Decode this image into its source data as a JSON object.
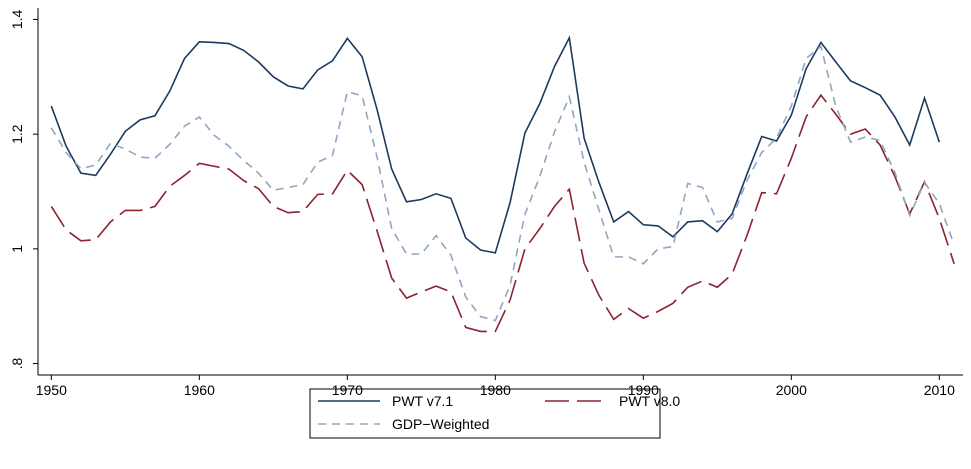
{
  "chart_data": {
    "type": "line",
    "x": [
      1950,
      1951,
      1952,
      1953,
      1954,
      1955,
      1956,
      1957,
      1958,
      1959,
      1960,
      1961,
      1962,
      1963,
      1964,
      1965,
      1966,
      1967,
      1968,
      1969,
      1970,
      1971,
      1972,
      1973,
      1974,
      1975,
      1976,
      1977,
      1978,
      1979,
      1980,
      1981,
      1982,
      1983,
      1984,
      1985,
      1986,
      1987,
      1988,
      1989,
      1990,
      1991,
      1992,
      1993,
      1994,
      1995,
      1996,
      1997,
      1998,
      1999,
      2000,
      2001,
      2002,
      2003,
      2004,
      2005,
      2006,
      2007,
      2008,
      2009,
      2010,
      2011
    ],
    "series": [
      {
        "name": "PWT v7.1",
        "color": "#1c3a5e",
        "values": [
          1.249,
          1.179,
          1.132,
          1.128,
          1.165,
          1.205,
          1.225,
          1.232,
          1.275,
          1.332,
          1.361,
          1.36,
          1.358,
          1.346,
          1.326,
          1.3,
          1.284,
          1.279,
          1.312,
          1.328,
          1.367,
          1.335,
          1.244,
          1.139,
          1.082,
          1.086,
          1.096,
          1.088,
          1.019,
          0.998,
          0.993,
          1.081,
          1.202,
          1.253,
          1.318,
          1.368,
          1.193,
          1.116,
          1.047,
          1.065,
          1.042,
          1.04,
          1.021,
          1.047,
          1.049,
          1.03,
          1.061,
          1.13,
          1.196,
          1.188,
          1.233,
          1.314,
          1.36,
          1.326,
          1.293,
          1.281,
          1.268,
          1.23,
          1.181,
          1.263,
          1.186,
          null
        ]
      },
      {
        "name": "PWT v8.0",
        "color": "#8b2332",
        "values": [
          1.074,
          1.033,
          1.014,
          1.016,
          1.047,
          1.067,
          1.067,
          1.074,
          1.109,
          1.128,
          1.149,
          1.144,
          1.139,
          1.119,
          1.105,
          1.074,
          1.063,
          1.065,
          1.095,
          1.096,
          1.137,
          1.112,
          1.032,
          0.949,
          0.914,
          0.925,
          0.935,
          0.925,
          0.863,
          0.856,
          0.856,
          0.911,
          1.0,
          1.035,
          1.074,
          1.104,
          0.975,
          0.919,
          0.877,
          0.896,
          0.879,
          0.891,
          0.905,
          0.933,
          0.944,
          0.933,
          0.956,
          1.023,
          1.098,
          1.096,
          1.158,
          1.23,
          1.268,
          1.235,
          1.2,
          1.209,
          1.181,
          1.126,
          1.061,
          1.117,
          1.053,
          0.974
        ]
      },
      {
        "name": "GDP−Weighted",
        "color": "#8fa6c4",
        "values": [
          1.211,
          1.168,
          1.14,
          1.146,
          1.184,
          1.174,
          1.16,
          1.158,
          1.182,
          1.214,
          1.23,
          1.198,
          1.179,
          1.154,
          1.132,
          1.102,
          1.107,
          1.112,
          1.151,
          1.163,
          1.274,
          1.267,
          1.161,
          1.035,
          0.991,
          0.991,
          1.023,
          0.989,
          0.916,
          0.882,
          0.875,
          0.937,
          1.06,
          1.126,
          1.204,
          1.265,
          1.151,
          1.068,
          0.986,
          0.986,
          0.974,
          1.0,
          1.004,
          1.114,
          1.107,
          1.047,
          1.053,
          1.119,
          1.168,
          1.193,
          1.249,
          1.332,
          1.353,
          1.249,
          1.186,
          1.195,
          1.189,
          1.133,
          1.058,
          1.116,
          1.079,
          1.007
        ]
      }
    ],
    "xlim": [
      1949.1,
      2011.6
    ],
    "xticks": [
      1950,
      1960,
      1970,
      1980,
      1990,
      2000,
      2010
    ],
    "ylim": [
      0.78,
      1.42
    ],
    "yticks": [
      {
        "value": 0.8,
        "label": ".8"
      },
      1,
      1.2,
      1.4
    ],
    "grid": false,
    "legend": "bottom"
  }
}
